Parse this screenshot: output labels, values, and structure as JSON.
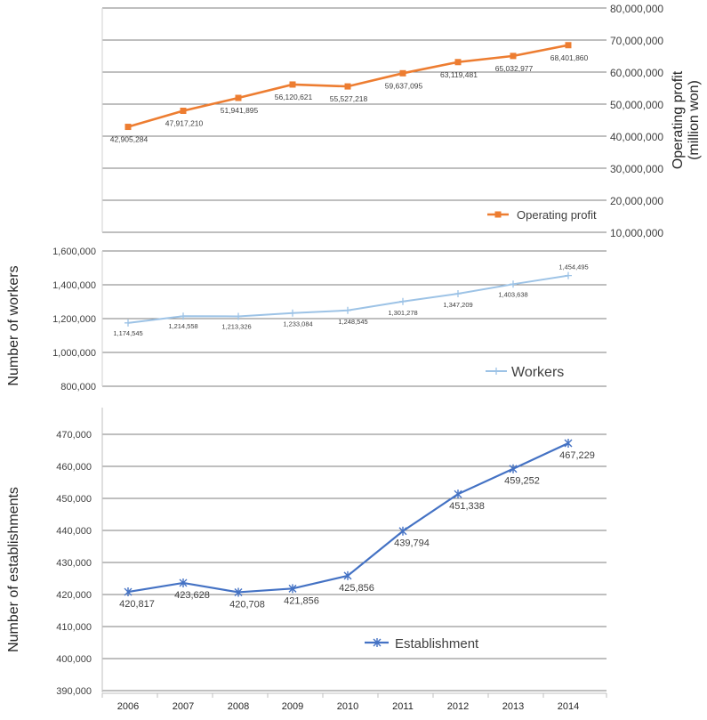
{
  "chart_data": [
    {
      "type": "line",
      "x": [
        "2006",
        "2007",
        "2008",
        "2009",
        "2010",
        "2011",
        "2012",
        "2013",
        "2014"
      ],
      "series": [
        {
          "name": "Operating profit",
          "values": [
            42905284,
            47917210,
            51941895,
            56120621,
            55527218,
            59637095,
            63119481,
            65032977,
            68401860
          ],
          "labels": [
            "42,905,284",
            "47,917,210",
            "51,941,895",
            "56,120,621",
            "55,527,218",
            "59,637,095",
            "63,119,481",
            "65,032,977",
            "68,401,860"
          ],
          "color": "#ED7D31",
          "marker": "square"
        }
      ],
      "ylabel": "Operating profit\n(million won)",
      "ylabel_lines": [
        "Operating profit",
        "(million won)"
      ],
      "y_axis_side": "right",
      "ylim": [
        10000000,
        80000000
      ],
      "yticks": [
        10000000,
        20000000,
        30000000,
        40000000,
        50000000,
        60000000,
        70000000,
        80000000
      ],
      "ytick_labels": [
        "10,000,000",
        "20,000,000",
        "30,000,000",
        "40,000,000",
        "50,000,000",
        "60,000,000",
        "70,000,000",
        "80,000,000"
      ],
      "grid": true,
      "legend": "bottom-right"
    },
    {
      "type": "line",
      "x": [
        "2006",
        "2007",
        "2008",
        "2009",
        "2010",
        "2011",
        "2012",
        "2013",
        "2014"
      ],
      "series": [
        {
          "name": "Workers",
          "values": [
            1174545,
            1214558,
            1213326,
            1233084,
            1248545,
            1301278,
            1347209,
            1403638,
            1454495
          ],
          "labels": [
            "1,174,545",
            "1,214,558",
            "1,213,326",
            "1,233,084",
            "1,248,545",
            "1,301,278",
            "1,347,209",
            "1,403,638",
            "1,454,495"
          ],
          "color": "#9DC3E6",
          "marker": "plus"
        }
      ],
      "ylabel": "Number of workers",
      "y_axis_side": "left",
      "ylim": [
        800000,
        1600000
      ],
      "yticks": [
        800000,
        1000000,
        1200000,
        1400000,
        1600000
      ],
      "ytick_labels": [
        "800,000",
        "1,000,000",
        "1,200,000",
        "1,400,000",
        "1,600,000"
      ],
      "grid": true,
      "legend": "bottom-right"
    },
    {
      "type": "line",
      "x": [
        "2006",
        "2007",
        "2008",
        "2009",
        "2010",
        "2011",
        "2012",
        "2013",
        "2014"
      ],
      "series": [
        {
          "name": "Establishment",
          "values": [
            420817,
            423628,
            420708,
            421856,
            425856,
            439794,
            451338,
            459252,
            467229
          ],
          "labels": [
            "420,817",
            "423,628",
            "420,708",
            "421,856",
            "425,856",
            "439,794",
            "451,338",
            "459,252",
            "467,229"
          ],
          "color": "#4472C4",
          "marker": "asterisk"
        }
      ],
      "ylabel": "Number of establishments",
      "y_axis_side": "left",
      "ylim": [
        390000,
        470000
      ],
      "yticks": [
        390000,
        400000,
        410000,
        420000,
        430000,
        440000,
        450000,
        460000,
        470000
      ],
      "ytick_labels": [
        "390,000",
        "400,000",
        "410,000",
        "420,000",
        "430,000",
        "440,000",
        "450,000",
        "460,000",
        "470,000"
      ],
      "grid": true,
      "legend": "bottom-right"
    }
  ]
}
